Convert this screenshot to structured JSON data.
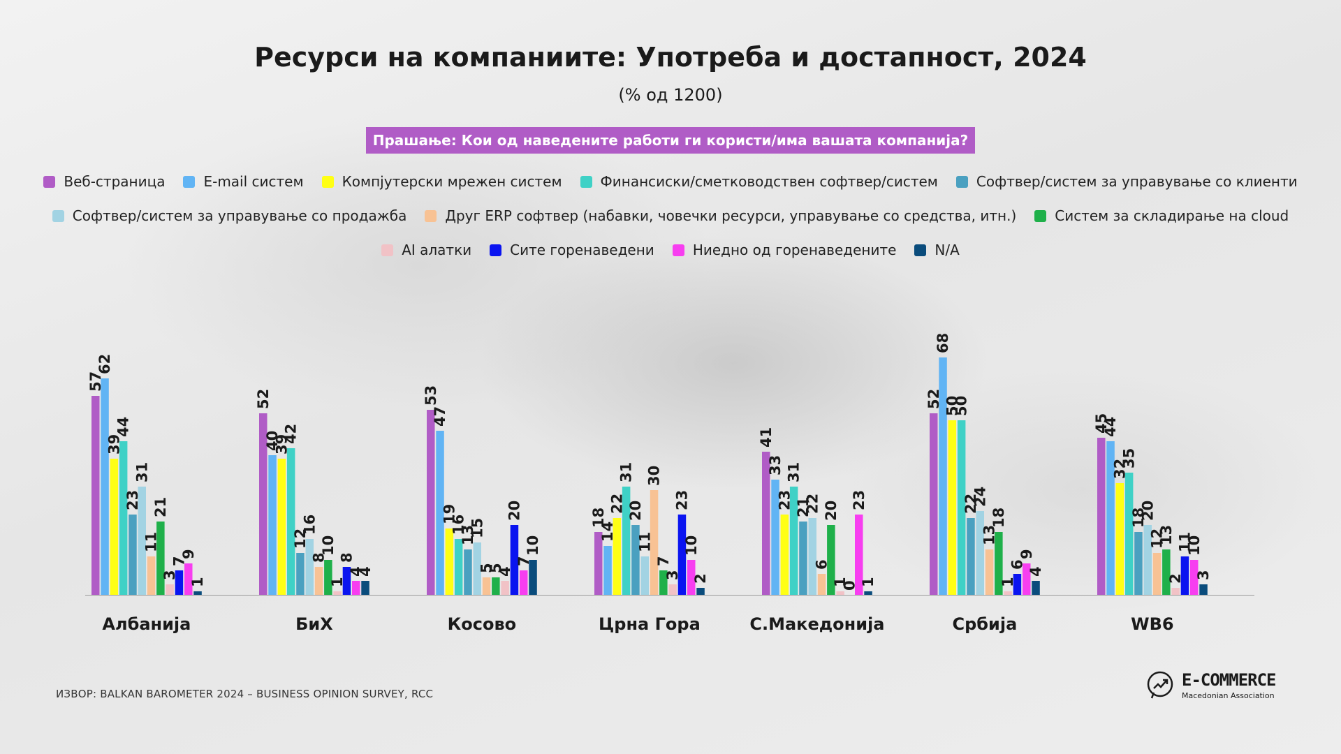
{
  "title": "Ресурси на компаниите: Употреба и достапност, 2024",
  "subtitle": "(% од 1200)",
  "question": "Прашање: Кои од наведените работи ги користи/има вашата компанија?",
  "source": "ИЗВОР: BALKAN BAROMETER 2024 – BUSINESS OPINION SURVEY, RCC",
  "logo": {
    "main": "E-COMMERCE",
    "sub": "Macedonian Association"
  },
  "colors": [
    "#b05cc6",
    "#61b4f4",
    "#ffff14",
    "#3fd1c6",
    "#4aa0c0",
    "#a2d3e3",
    "#f8c294",
    "#1fb04a",
    "#f1c2c6",
    "#0a14f0",
    "#f73ef0",
    "#0a4c7c"
  ],
  "chart_data": {
    "type": "bar",
    "title": "Ресурси на компаниите: Употреба и достапност, 2024",
    "ylim": [
      0,
      75
    ],
    "grid": false,
    "legend_position": "top",
    "categories": [
      "Албанија",
      "БиХ",
      "Косово",
      "Црна Гора",
      "С.Македонија",
      "Србија",
      "WB6"
    ],
    "series": [
      {
        "name": "Веб-страница",
        "values": [
          57,
          52,
          53,
          18,
          41,
          52,
          45
        ]
      },
      {
        "name": "E-mail систем",
        "values": [
          62,
          40,
          47,
          14,
          33,
          68,
          44
        ]
      },
      {
        "name": "Компјутерски мрежен систем",
        "values": [
          39,
          39,
          19,
          22,
          23,
          50,
          32
        ]
      },
      {
        "name": "Финансиски/сметководствен софтвер/систем",
        "values": [
          44,
          42,
          16,
          31,
          31,
          50,
          35
        ]
      },
      {
        "name": "Софтвер/систем за управување со клиенти",
        "values": [
          23,
          12,
          13,
          20,
          21,
          22,
          18
        ]
      },
      {
        "name": "Софтвер/систем за управување со продажба",
        "values": [
          31,
          16,
          15,
          11,
          22,
          24,
          20
        ]
      },
      {
        "name": "Друг ERP софтвер (набавки, човечки ресурси, управување со средства, итн.)",
        "values": [
          11,
          8,
          5,
          30,
          6,
          13,
          12
        ]
      },
      {
        "name": "Систем за складирање на cloud",
        "values": [
          21,
          10,
          5,
          7,
          20,
          18,
          13
        ]
      },
      {
        "name": "AI алатки",
        "values": [
          3,
          1,
          4,
          3,
          1,
          1,
          2
        ]
      },
      {
        "name": "Сите горенаведени",
        "values": [
          7,
          8,
          20,
          23,
          0,
          6,
          11
        ]
      },
      {
        "name": "Ниедно од горенаведените",
        "values": [
          9,
          4,
          7,
          10,
          23,
          9,
          10
        ]
      },
      {
        "name": "N/A",
        "values": [
          1,
          4,
          10,
          2,
          1,
          4,
          3
        ]
      }
    ]
  }
}
